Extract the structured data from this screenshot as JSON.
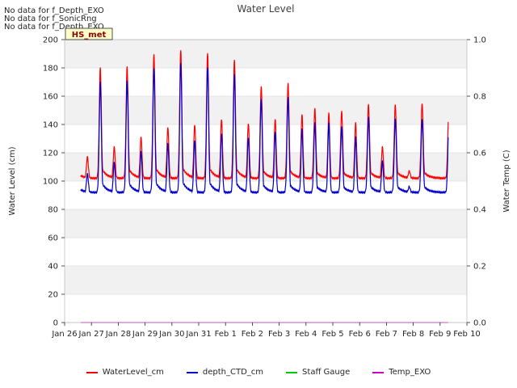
{
  "no_data_messages": [
    "No data for f_Depth_EXO",
    "No data for f_SonicRng",
    "No data for f_Depth_EXO"
  ],
  "chart_data": {
    "type": "line",
    "title": "Water Level",
    "badge": "HS_met",
    "ylabel_left": "Water Level (cm)",
    "ylabel_right": "Water Temp (C)",
    "ylim_left": [
      0,
      200
    ],
    "ylim_right": [
      0,
      1.0
    ],
    "yticks_left": [
      "0",
      "20",
      "40",
      "60",
      "80",
      "100",
      "120",
      "140",
      "160",
      "180",
      "200"
    ],
    "yticks_right": [
      "0.0",
      "0.2",
      "0.4",
      "0.6",
      "0.8",
      "1.0"
    ],
    "x_range": [
      "Jan 26",
      "Feb 10"
    ],
    "xtick_labels": [
      "Jan 26",
      "Jan 27",
      "Jan 28",
      "Jan 29",
      "Jan 30",
      "Jan 31",
      "Feb 1",
      "Feb 2",
      "Feb 3",
      "Feb 4",
      "Feb 5",
      "Feb 6",
      "Feb 7",
      "Feb 8",
      "Feb 9",
      "Feb 10"
    ],
    "grid": "horizontal bands",
    "legend_position": "bottom",
    "series": [
      {
        "name": "WaterLevel_cm",
        "color": "#ff0000",
        "axis": "left",
        "daily_peaks": [
          [
            170,
            117
          ],
          [
            180,
            124
          ],
          [
            181,
            131
          ],
          [
            190,
            138
          ],
          [
            193,
            140
          ],
          [
            191,
            144
          ],
          [
            186,
            141
          ],
          [
            167,
            144
          ],
          [
            169,
            147
          ],
          [
            151,
            148
          ],
          [
            149,
            141
          ],
          [
            154,
            124
          ],
          [
            154,
            107
          ],
          [
            155,
            null
          ]
        ],
        "trough": 102
      },
      {
        "name": "depth_CTD_cm",
        "color": "#0000cc",
        "axis": "left",
        "daily_peaks": [
          [
            160,
            105
          ],
          [
            170,
            113
          ],
          [
            171,
            121
          ],
          [
            180,
            127
          ],
          [
            184,
            129
          ],
          [
            181,
            134
          ],
          [
            176,
            131
          ],
          [
            158,
            135
          ],
          [
            159,
            137
          ],
          [
            141,
            141
          ],
          [
            138,
            131
          ],
          [
            145,
            114
          ],
          [
            144,
            96
          ],
          [
            144,
            null
          ]
        ],
        "trough": 92
      },
      {
        "name": "Staff Gauge",
        "color": "#00cc00",
        "axis": "left",
        "values": []
      },
      {
        "name": "Temp_EXO",
        "color": "#cc00cc",
        "axis": "right",
        "constant_value": 0.0,
        "x_start": "Jan 26.6",
        "x_end": "Feb 9.3"
      }
    ]
  }
}
